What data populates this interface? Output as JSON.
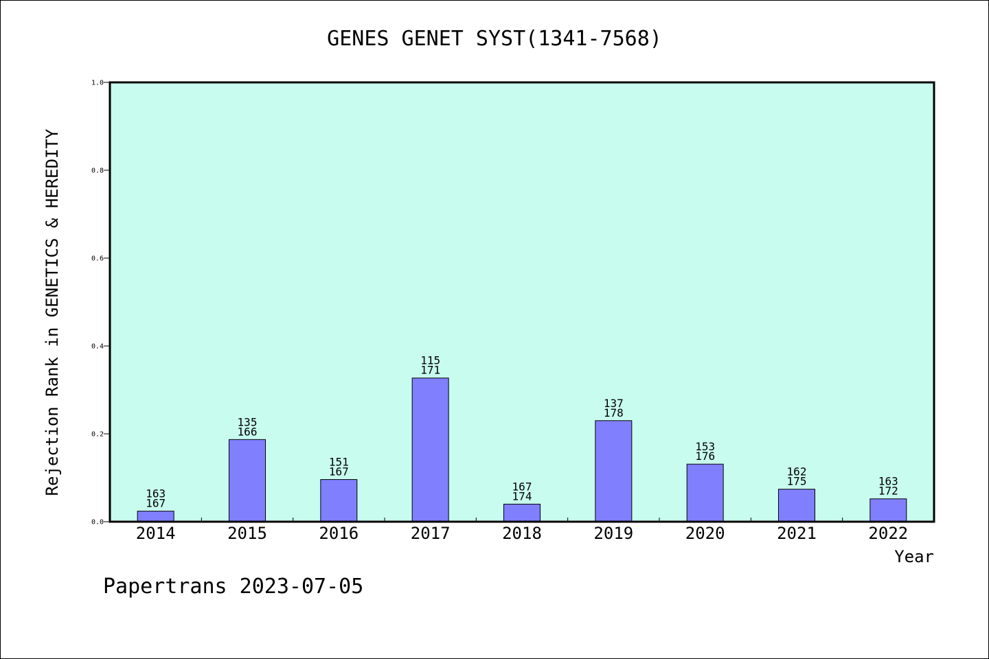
{
  "chart_data": {
    "type": "bar",
    "title": "GENES GENET SYST(1341-7568)",
    "xlabel": "Year",
    "ylabel": "Rejection Rank in GENETICS & HEREDITY",
    "ylim": [
      0,
      1.0
    ],
    "yticks": [
      "0.0",
      "0.2",
      "0.4",
      "0.6",
      "0.8",
      "1.0"
    ],
    "categories": [
      "2014",
      "2015",
      "2016",
      "2017",
      "2018",
      "2019",
      "2020",
      "2021",
      "2022"
    ],
    "values": [
      0.024,
      0.187,
      0.096,
      0.327,
      0.04,
      0.23,
      0.131,
      0.074,
      0.052
    ],
    "label_top": [
      "163",
      "135",
      "151",
      "115",
      "167",
      "137",
      "153",
      "162",
      "163"
    ],
    "label_bottom": [
      "167",
      "166",
      "167",
      "171",
      "174",
      "178",
      "176",
      "175",
      "172"
    ],
    "grid": false,
    "legend": "none",
    "colors": {
      "plot_background": "#c8fcee",
      "bar_fill": "#8080ff",
      "bar_stroke": "#000000"
    }
  },
  "footer": {
    "text": "Papertrans 2023-07-05"
  }
}
